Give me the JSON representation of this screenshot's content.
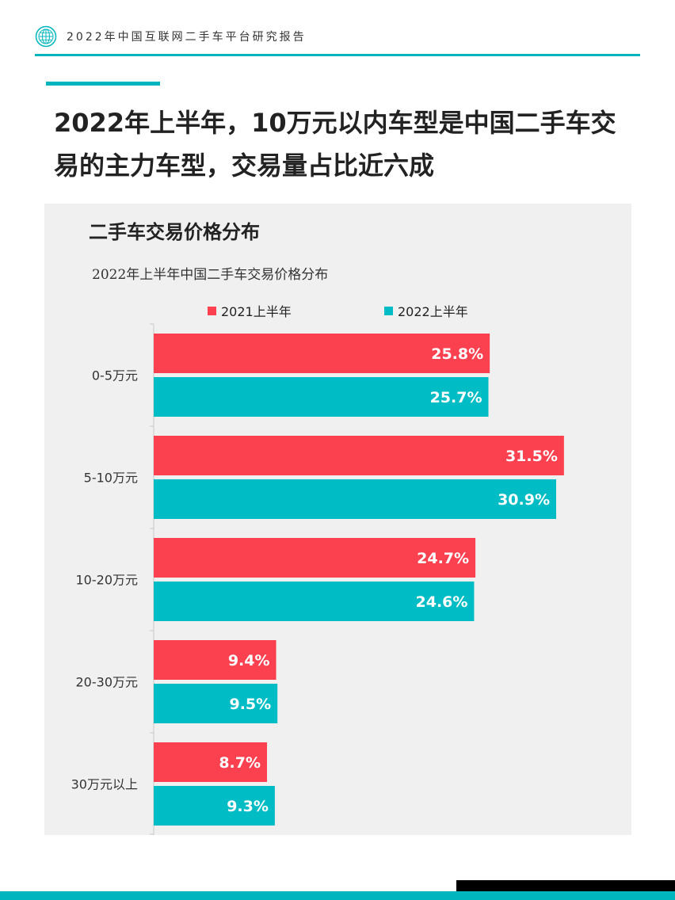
{
  "header": {
    "report_title": "2022年中国互联网二手车平台研究报告",
    "logo_icon": "globe-logo-icon"
  },
  "headline": "2022年上半年，10万元以内车型是中国二手车交易的主力车型，交易量占比近六成",
  "chart_heading": "二手车交易价格分布",
  "colors": {
    "accent": "#00b5bd",
    "series_2021": "#fb4150",
    "series_2022": "#00bcc4",
    "panel_bg": "#f0f0f0"
  },
  "chart_data": {
    "type": "bar",
    "orientation": "horizontal",
    "title": "2022年上半年中国二手车交易价格分布",
    "categories": [
      "0-5万元",
      "5-10万元",
      "10-20万元",
      "20-30万元",
      "30万元以上"
    ],
    "series": [
      {
        "name": "2021上半年",
        "values": [
          25.8,
          31.5,
          24.7,
          9.4,
          8.7
        ],
        "labels": [
          "25.8%",
          "31.5%",
          "24.7%",
          "9.4%",
          "8.7%"
        ],
        "color": "#fb4150"
      },
      {
        "name": "2022上半年",
        "values": [
          25.7,
          30.9,
          24.6,
          9.5,
          9.3
        ],
        "labels": [
          "25.7%",
          "30.9%",
          "24.6%",
          "9.5%",
          "9.3%"
        ],
        "color": "#00bcc4"
      }
    ],
    "unit": "%",
    "xlim": [
      0,
      32
    ],
    "legend": "top",
    "grid": false
  }
}
